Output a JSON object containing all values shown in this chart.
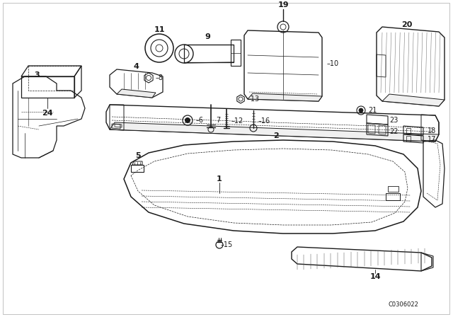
{
  "bg_color": "#ffffff",
  "line_color": "#1a1a1a",
  "diagram_code": "C0306022"
}
